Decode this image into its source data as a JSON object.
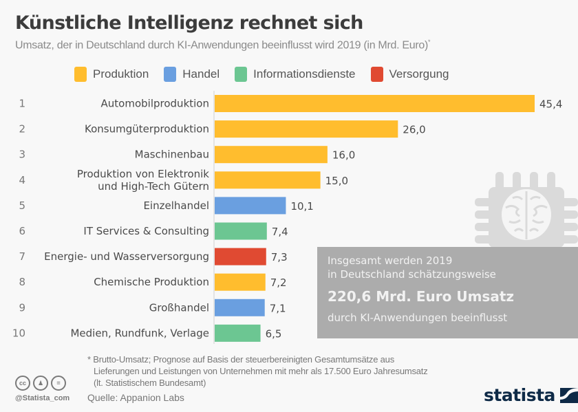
{
  "header": {
    "title": "Künstliche Intelligenz rechnet sich",
    "subtitle": "Umsatz, der in Deutschland durch KI-Anwendungen beeinflusst wird 2019 (in Mrd. Euro)",
    "subtitle_mark": "*"
  },
  "legend": [
    {
      "label": "Produktion",
      "color": "#ffbd2e"
    },
    {
      "label": "Handel",
      "color": "#6a9fe0"
    },
    {
      "label": "Informationsdienste",
      "color": "#6cc692"
    },
    {
      "label": "Versorgung",
      "color": "#e04a32"
    }
  ],
  "chart_data": {
    "type": "bar",
    "orientation": "horizontal",
    "title": "Künstliche Intelligenz rechnet sich",
    "subtitle": "Umsatz, der in Deutschland durch KI-Anwendungen beeinflusst wird 2019 (in Mrd. Euro)*",
    "xlabel": "",
    "ylabel": "",
    "unit": "Mrd. Euro",
    "legend_position": "top",
    "grid": false,
    "xlim": [
      0,
      45.4
    ],
    "ranks": [
      "1",
      "2",
      "3",
      "4",
      "5",
      "6",
      "7",
      "8",
      "9",
      "10"
    ],
    "categories": [
      [
        "Automobilproduktion"
      ],
      [
        "Konsumgüterproduktion"
      ],
      [
        "Maschinenbau"
      ],
      [
        "Produktion von Elektronik",
        "und High-Tech Gütern"
      ],
      [
        "Einzelhandel"
      ],
      [
        "IT Services & Consulting"
      ],
      [
        "Energie- und Wasserversorgung"
      ],
      [
        "Chemische Produktion"
      ],
      [
        "Großhandel"
      ],
      [
        "Medien, Rundfunk, Verlage"
      ]
    ],
    "values": [
      45.4,
      26.0,
      16.0,
      15.0,
      10.1,
      7.4,
      7.3,
      7.2,
      7.1,
      6.5
    ],
    "value_labels": [
      "45,4",
      "26,0",
      "16,0",
      "15,0",
      "10,1",
      "7,4",
      "7,3",
      "7,2",
      "7,1",
      "6,5"
    ],
    "groups": [
      "Produktion",
      "Produktion",
      "Produktion",
      "Produktion",
      "Handel",
      "Informationsdienste",
      "Versorgung",
      "Produktion",
      "Handel",
      "Informationsdienste"
    ]
  },
  "infobox": {
    "line1": "Insgesamt werden 2019",
    "line2": "in Deutschland schätzungsweise",
    "highlight": "220,6 Mrd. Euro Umsatz",
    "line3": "durch KI-Anwendungen beeinflusst",
    "icon": "chip-brain-icon"
  },
  "footer": {
    "footnote_lines": [
      "* Brutto-Umsatz; Prognose auf Basis der steuerbereinigten Gesamtumsätze aus",
      "Lieferungen und Leistungen von Unternehmen mit mehr als 17.500 Euro Jahresumsatz",
      "(lt. Statistischem Bundesamt)"
    ],
    "source": "Quelle: Appanion Labs",
    "handle": "@Statista_com",
    "license_icons": [
      "cc",
      "by",
      "nd"
    ],
    "brand": "statista"
  }
}
